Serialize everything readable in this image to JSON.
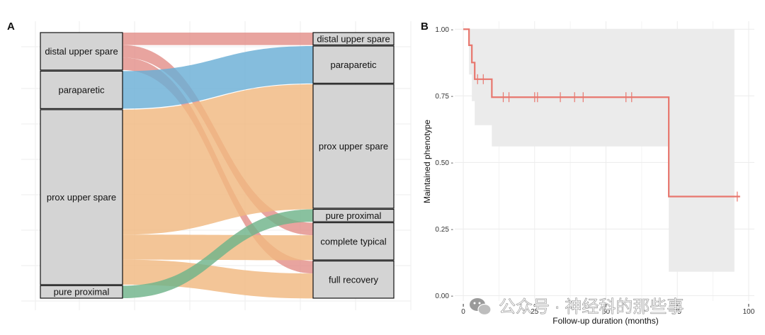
{
  "panels": {
    "a_label": "A",
    "b_label": "B"
  },
  "watermark": {
    "text": "公众号 · 神经科的那些事",
    "icon": "wechat-icon"
  },
  "chart_data": [
    {
      "type": "sankey",
      "panel": "A",
      "left_nodes": [
        {
          "id": "distal upper spare",
          "label": "distal upper spare"
        },
        {
          "id": "paraparetic",
          "label": "paraparetic"
        },
        {
          "id": "prox upper spare",
          "label": "prox upper spare"
        },
        {
          "id": "pure proximal",
          "label": "pure proximal"
        }
      ],
      "right_nodes": [
        {
          "id": "distal upper spare",
          "label": "distal upper spare"
        },
        {
          "id": "paraparetic",
          "label": "paraparetic"
        },
        {
          "id": "prox upper spare",
          "label": "prox upper spare"
        },
        {
          "id": "pure proximal",
          "label": "pure proximal"
        },
        {
          "id": "complete typical",
          "label": "complete typical"
        },
        {
          "id": "full recovery",
          "label": "full recovery"
        }
      ],
      "flows": [
        {
          "from": "distal upper spare",
          "to": "distal upper spare",
          "value": 1,
          "color": "#e3908a"
        },
        {
          "from": "distal upper spare",
          "to": "complete typical",
          "value": 1,
          "color": "#e3908a"
        },
        {
          "from": "distal upper spare",
          "to": "full recovery",
          "value": 1,
          "color": "#e3908a"
        },
        {
          "from": "paraparetic",
          "to": "paraparetic",
          "value": 3,
          "color": "#6aaed6"
        },
        {
          "from": "prox upper spare",
          "to": "prox upper spare",
          "value": 10,
          "color": "#f0b880"
        },
        {
          "from": "prox upper spare",
          "to": "complete typical",
          "value": 2,
          "color": "#f0b880"
        },
        {
          "from": "prox upper spare",
          "to": "full recovery",
          "value": 2,
          "color": "#f0b880"
        },
        {
          "from": "pure proximal",
          "to": "pure proximal",
          "value": 1,
          "color": "#6fb38a"
        }
      ]
    },
    {
      "type": "line",
      "subtype": "kaplan-meier",
      "panel": "B",
      "xlabel": "Follow-up duration (months)",
      "ylabel": "Maintained phenotype",
      "xlim": [
        -3,
        102
      ],
      "ylim": [
        -0.02,
        1.03
      ],
      "x_ticks": [
        0,
        25,
        50,
        75,
        100
      ],
      "x_tick_labels": [
        "0",
        "25",
        "50",
        "75",
        "100"
      ],
      "y_ticks": [
        0,
        0.25,
        0.5,
        0.75,
        1
      ],
      "y_tick_labels": [
        "0.00 -",
        "0.25 -",
        "0.50 -",
        "0.75 -",
        "1.00 -"
      ],
      "line_color": "#e8776e",
      "band_color": "#ebebeb",
      "survival_steps": [
        {
          "x": 0,
          "y": 1.0
        },
        {
          "x": 2,
          "y": 0.94
        },
        {
          "x": 3,
          "y": 0.875
        },
        {
          "x": 4,
          "y": 0.8125
        },
        {
          "x": 10,
          "y": 0.745
        },
        {
          "x": 72,
          "y": 0.372
        },
        {
          "x": 97,
          "y": 0.372
        }
      ],
      "confidence_band": [
        {
          "x": 0,
          "low": 1.0,
          "high": 1.0
        },
        {
          "x": 2,
          "low": 0.83,
          "high": 1.0
        },
        {
          "x": 3,
          "low": 0.73,
          "high": 1.0
        },
        {
          "x": 4,
          "low": 0.64,
          "high": 1.0
        },
        {
          "x": 10,
          "low": 0.56,
          "high": 1.0
        },
        {
          "x": 72,
          "low": 0.09,
          "high": 1.0
        },
        {
          "x": 95,
          "low": 0.09,
          "high": 1.0
        }
      ],
      "censor_times": [
        5,
        7,
        14,
        16,
        25,
        26,
        34,
        39,
        42,
        57,
        59,
        96
      ]
    }
  ]
}
